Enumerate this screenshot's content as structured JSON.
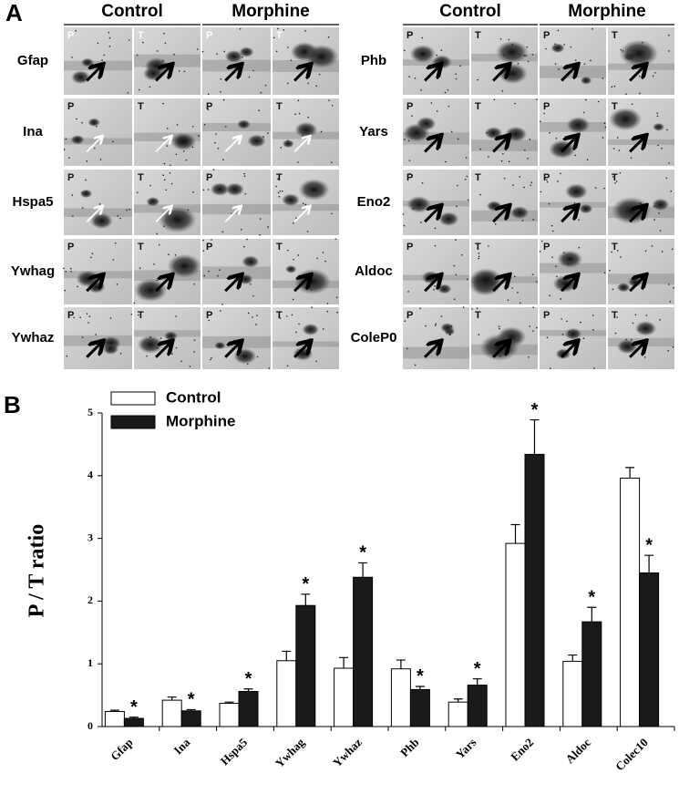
{
  "panel_labels": {
    "a": "A",
    "b": "B"
  },
  "gel_panel": {
    "group_headers": [
      "Control",
      "Morphine"
    ],
    "lane_labels": [
      "P",
      "T"
    ],
    "proteins_left": [
      "Gfap",
      "Ina",
      "Hspa5",
      "Ywhag",
      "Ywhaz"
    ],
    "proteins_right": [
      "Phb",
      "Yars",
      "Eno2",
      "Aldoc",
      "ColeP0"
    ]
  },
  "chart_data": {
    "type": "bar",
    "ylabel": "P / T ratio",
    "categories": [
      "Gfap",
      "Ina",
      "Hspa5",
      "Ywhag",
      "Ywhaz",
      "Phb",
      "Yars",
      "Eno2",
      "Aldoc",
      "Colec10"
    ],
    "series": [
      {
        "name": "Control",
        "color": "#ffffff",
        "values": [
          0.24,
          0.42,
          0.37,
          1.05,
          0.93,
          0.92,
          0.39,
          2.92,
          1.04,
          3.96
        ],
        "errors": [
          0.02,
          0.05,
          0.02,
          0.15,
          0.17,
          0.14,
          0.05,
          0.3,
          0.1,
          0.17
        ]
      },
      {
        "name": "Morphine",
        "color": "#1a1a1a",
        "values": [
          0.13,
          0.25,
          0.56,
          1.93,
          2.38,
          0.59,
          0.66,
          4.34,
          1.67,
          2.45
        ],
        "errors": [
          0.02,
          0.02,
          0.04,
          0.18,
          0.23,
          0.05,
          0.1,
          0.55,
          0.23,
          0.28
        ],
        "significance": [
          "*",
          "*",
          "*",
          "*",
          "*",
          "*",
          "*",
          "*",
          "*",
          "*"
        ]
      }
    ],
    "ylim": [
      0,
      5
    ],
    "yticks": [
      0,
      1,
      2,
      3,
      4,
      5
    ],
    "legend": "upper-left"
  }
}
